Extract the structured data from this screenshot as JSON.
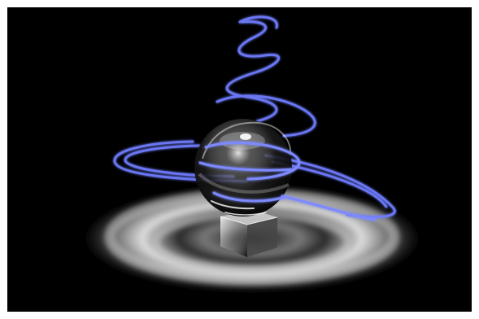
{
  "image": {
    "subject": "",
    "background_color": "#000000",
    "frame_color": "#ffffff",
    "light_trail_color": "#6f7dff",
    "glow_color": "#ffffff"
  }
}
